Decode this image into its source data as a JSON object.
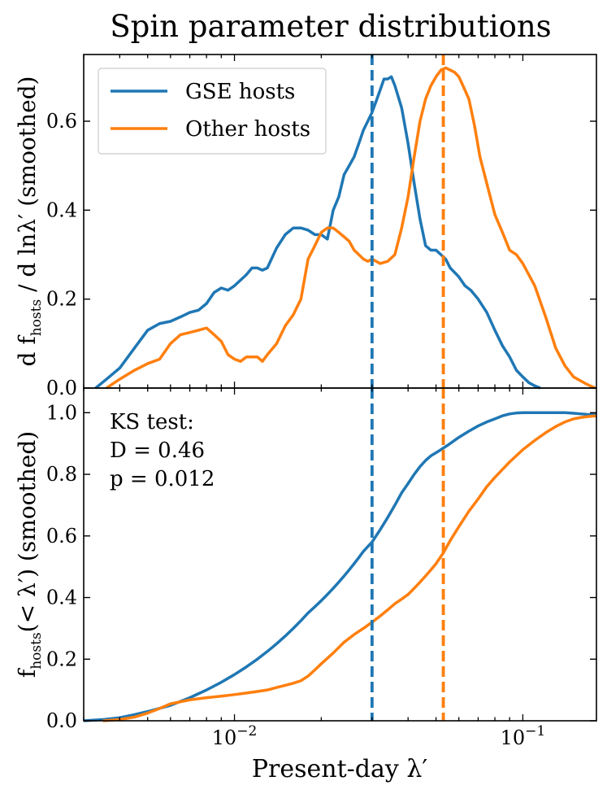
{
  "chart_data": {
    "type": "line",
    "title": "Spin parameter distributions",
    "xlabel": "Present-day λ′",
    "xscale": "log",
    "xlim": [
      0.003,
      0.18
    ],
    "colors": {
      "gse": "#1f77b4",
      "other": "#ff7f0e"
    },
    "vlines": {
      "gse_median": 0.03,
      "other_median": 0.053
    },
    "x_ticks": [
      {
        "value": 0.01,
        "base": "10",
        "exp": "−2"
      },
      {
        "value": 0.1,
        "base": "10",
        "exp": "−1"
      }
    ],
    "panels": [
      {
        "name": "pdf",
        "ylabel": "d f_hosts / d lnλ′ (smoothed)",
        "ylim": [
          0,
          0.75
        ],
        "yticks": [
          0.0,
          0.2,
          0.4,
          0.6
        ],
        "ytick_labels": [
          "0.0",
          "0.2",
          "0.4",
          "0.6"
        ],
        "legend": {
          "placement": "top-left",
          "entries": [
            "GSE hosts",
            "Other hosts"
          ]
        },
        "series": [
          {
            "name": "GSE hosts",
            "x": [
              0.0033,
              0.0036,
              0.004,
              0.0045,
              0.005,
              0.0055,
              0.006,
              0.0065,
              0.007,
              0.0075,
              0.008,
              0.0085,
              0.009,
              0.0095,
              0.01,
              0.011,
              0.0115,
              0.012,
              0.0125,
              0.013,
              0.014,
              0.015,
              0.016,
              0.0165,
              0.017,
              0.018,
              0.019,
              0.02,
              0.021,
              0.022,
              0.023,
              0.024,
              0.025,
              0.026,
              0.027,
              0.028,
              0.029,
              0.03,
              0.031,
              0.032,
              0.033,
              0.034,
              0.035,
              0.036,
              0.038,
              0.04,
              0.042,
              0.044,
              0.046,
              0.048,
              0.05,
              0.052,
              0.054,
              0.056,
              0.058,
              0.06,
              0.063,
              0.066,
              0.07,
              0.075,
              0.08,
              0.085,
              0.09,
              0.095,
              0.1,
              0.105,
              0.11,
              0.115
            ],
            "values": [
              0.0,
              0.02,
              0.045,
              0.09,
              0.13,
              0.145,
              0.15,
              0.16,
              0.17,
              0.175,
              0.19,
              0.215,
              0.225,
              0.22,
              0.23,
              0.255,
              0.27,
              0.27,
              0.265,
              0.27,
              0.315,
              0.345,
              0.36,
              0.36,
              0.36,
              0.355,
              0.345,
              0.345,
              0.335,
              0.4,
              0.43,
              0.48,
              0.5,
              0.52,
              0.55,
              0.58,
              0.6,
              0.62,
              0.645,
              0.67,
              0.695,
              0.695,
              0.7,
              0.68,
              0.63,
              0.55,
              0.46,
              0.38,
              0.32,
              0.31,
              0.31,
              0.3,
              0.29,
              0.27,
              0.26,
              0.25,
              0.23,
              0.22,
              0.2,
              0.17,
              0.13,
              0.095,
              0.07,
              0.04,
              0.025,
              0.012,
              0.005,
              0.0
            ]
          },
          {
            "name": "Other hosts",
            "x": [
              0.0036,
              0.004,
              0.0045,
              0.005,
              0.0055,
              0.006,
              0.0065,
              0.007,
              0.0075,
              0.008,
              0.0085,
              0.009,
              0.0095,
              0.01,
              0.0105,
              0.011,
              0.012,
              0.0125,
              0.013,
              0.014,
              0.015,
              0.016,
              0.017,
              0.018,
              0.019,
              0.02,
              0.021,
              0.022,
              0.023,
              0.024,
              0.025,
              0.026,
              0.027,
              0.028,
              0.029,
              0.03,
              0.032,
              0.034,
              0.036,
              0.038,
              0.04,
              0.042,
              0.044,
              0.046,
              0.048,
              0.05,
              0.052,
              0.054,
              0.056,
              0.058,
              0.06,
              0.062,
              0.065,
              0.068,
              0.071,
              0.075,
              0.08,
              0.085,
              0.09,
              0.095,
              0.1,
              0.11,
              0.12,
              0.13,
              0.14,
              0.15,
              0.165,
              0.178
            ],
            "values": [
              0.0,
              0.02,
              0.04,
              0.055,
              0.065,
              0.1,
              0.12,
              0.125,
              0.13,
              0.135,
              0.12,
              0.105,
              0.075,
              0.065,
              0.06,
              0.07,
              0.07,
              0.06,
              0.075,
              0.1,
              0.14,
              0.165,
              0.2,
              0.29,
              0.32,
              0.35,
              0.36,
              0.36,
              0.35,
              0.34,
              0.33,
              0.31,
              0.3,
              0.29,
              0.285,
              0.29,
              0.28,
              0.285,
              0.3,
              0.36,
              0.43,
              0.52,
              0.6,
              0.65,
              0.68,
              0.7,
              0.715,
              0.72,
              0.715,
              0.71,
              0.7,
              0.68,
              0.65,
              0.59,
              0.52,
              0.46,
              0.39,
              0.35,
              0.31,
              0.3,
              0.28,
              0.23,
              0.16,
              0.09,
              0.05,
              0.025,
              0.01,
              0.0
            ]
          }
        ]
      },
      {
        "name": "cdf",
        "ylabel": "f_hosts(< λ′) (smoothed)",
        "ylim": [
          0,
          1.08
        ],
        "yticks": [
          0.0,
          0.2,
          0.4,
          0.6,
          0.8,
          1.0
        ],
        "ytick_labels": [
          "0.0",
          "0.2",
          "0.4",
          "0.6",
          "0.8",
          "1.0"
        ],
        "annotation": {
          "line1": "KS test:",
          "line2": "D = 0.46",
          "line3": "p = 0.012"
        },
        "series": [
          {
            "name": "GSE hosts",
            "x": [
              0.003,
              0.0035,
              0.004,
              0.0045,
              0.005,
              0.006,
              0.007,
              0.008,
              0.009,
              0.01,
              0.011,
              0.012,
              0.013,
              0.014,
              0.015,
              0.016,
              0.017,
              0.018,
              0.019,
              0.02,
              0.021,
              0.022,
              0.023,
              0.024,
              0.025,
              0.026,
              0.027,
              0.028,
              0.03,
              0.032,
              0.034,
              0.036,
              0.038,
              0.04,
              0.042,
              0.044,
              0.046,
              0.048,
              0.05,
              0.052,
              0.055,
              0.06,
              0.065,
              0.07,
              0.075,
              0.08,
              0.085,
              0.09,
              0.095,
              0.1,
              0.11,
              0.12,
              0.13,
              0.14,
              0.15,
              0.16,
              0.17,
              0.18
            ],
            "values": [
              0.0,
              0.004,
              0.01,
              0.02,
              0.03,
              0.05,
              0.075,
              0.1,
              0.125,
              0.15,
              0.175,
              0.2,
              0.225,
              0.25,
              0.275,
              0.3,
              0.325,
              0.35,
              0.37,
              0.39,
              0.41,
              0.43,
              0.45,
              0.47,
              0.49,
              0.51,
              0.53,
              0.55,
              0.58,
              0.62,
              0.66,
              0.7,
              0.74,
              0.77,
              0.8,
              0.825,
              0.845,
              0.86,
              0.87,
              0.88,
              0.895,
              0.92,
              0.94,
              0.957,
              0.97,
              0.98,
              0.99,
              0.996,
              0.999,
              1.0,
              1.0,
              1.0,
              1.0,
              1.0,
              0.998,
              0.996,
              0.994,
              0.995
            ]
          },
          {
            "name": "Other hosts",
            "x": [
              0.0035,
              0.004,
              0.0045,
              0.005,
              0.0055,
              0.006,
              0.007,
              0.008,
              0.009,
              0.01,
              0.011,
              0.012,
              0.013,
              0.014,
              0.015,
              0.016,
              0.017,
              0.018,
              0.019,
              0.02,
              0.022,
              0.024,
              0.026,
              0.028,
              0.03,
              0.032,
              0.034,
              0.036,
              0.038,
              0.04,
              0.042,
              0.044,
              0.046,
              0.048,
              0.05,
              0.053,
              0.056,
              0.06,
              0.065,
              0.07,
              0.075,
              0.08,
              0.09,
              0.1,
              0.11,
              0.12,
              0.13,
              0.14,
              0.15,
              0.16,
              0.17,
              0.18
            ],
            "values": [
              0.0,
              0.004,
              0.012,
              0.025,
              0.04,
              0.055,
              0.068,
              0.075,
              0.08,
              0.085,
              0.09,
              0.095,
              0.1,
              0.108,
              0.115,
              0.122,
              0.13,
              0.145,
              0.165,
              0.185,
              0.22,
              0.255,
              0.28,
              0.3,
              0.32,
              0.34,
              0.36,
              0.38,
              0.395,
              0.41,
              0.43,
              0.45,
              0.47,
              0.49,
              0.51,
              0.545,
              0.585,
              0.63,
              0.68,
              0.72,
              0.76,
              0.79,
              0.84,
              0.88,
              0.91,
              0.935,
              0.955,
              0.97,
              0.98,
              0.985,
              0.988,
              0.99
            ]
          }
        ]
      }
    ]
  }
}
